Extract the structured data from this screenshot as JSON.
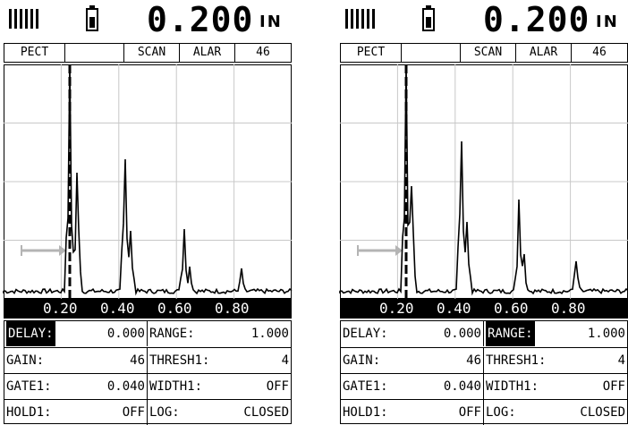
{
  "panels": [
    {
      "reading": "0.200",
      "unit": "IN",
      "status": {
        "mode": "PECT",
        "blank": "",
        "scan": "SCAN",
        "alarm": "ALAR",
        "count": "46"
      },
      "axis_labels": [
        "0.20",
        "0.40",
        "0.60",
        "0.80"
      ],
      "params": [
        {
          "label": "DELAY:",
          "value": "0.000",
          "rlabel": "RANGE:",
          "rvalue": "1.000"
        },
        {
          "label": "GAIN:",
          "value": "46",
          "rlabel": "THRESH1:",
          "rvalue": "4"
        },
        {
          "label": "GATE1:",
          "value": "0.040",
          "rlabel": "WIDTH1:",
          "rvalue": "OFF"
        },
        {
          "label": "HOLD1:",
          "value": "OFF",
          "rlabel": "LOG:",
          "rvalue": "CLOSED"
        }
      ],
      "highlighted": "DELAY:"
    },
    {
      "reading": "0.200",
      "unit": "IN",
      "status": {
        "mode": "PECT",
        "blank": "",
        "scan": "SCAN",
        "alarm": "ALAR",
        "count": "46"
      },
      "axis_labels": [
        "0.20",
        "0.40",
        "0.60",
        "0.80"
      ],
      "params": [
        {
          "label": "DELAY:",
          "value": "0.000",
          "rlabel": "RANGE:",
          "rvalue": "1.000"
        },
        {
          "label": "GAIN:",
          "value": "46",
          "rlabel": "THRESH1:",
          "rvalue": "4"
        },
        {
          "label": "GATE1:",
          "value": "0.040",
          "rlabel": "WIDTH1:",
          "rvalue": "OFF"
        },
        {
          "label": "HOLD1:",
          "value": "OFF",
          "rlabel": "LOG:",
          "rvalue": "CLOSED"
        }
      ],
      "highlighted": "RANGE:"
    }
  ],
  "icons": {
    "signal": "signal-bars-icon",
    "battery": "battery-icon",
    "gate_arrow": "gate-arrow-icon"
  },
  "colors": {
    "foreground": "#000000",
    "background": "#ffffff",
    "grid": "#c8c8c8",
    "gate": "#b4b4b4"
  }
}
